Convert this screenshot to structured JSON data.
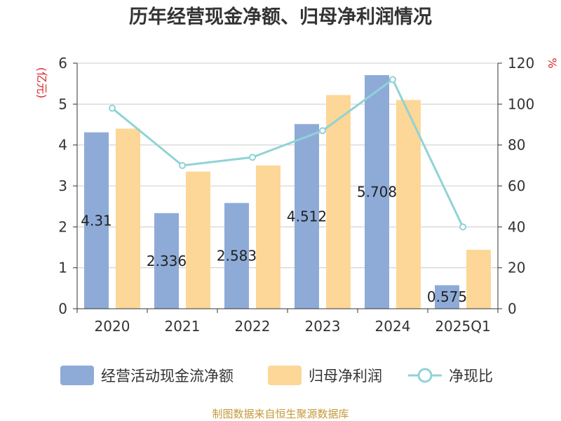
{
  "chart_data": {
    "type": "bar",
    "title": "历年经营现金净额、归母净利润情况",
    "categories": [
      "2020",
      "2021",
      "2022",
      "2023",
      "2024",
      "2025Q1"
    ],
    "left_axis": {
      "unit_label": "(亿元)",
      "ylim": [
        0,
        6
      ],
      "ticks": [
        "0",
        "1",
        "2",
        "3",
        "4",
        "5",
        "6"
      ]
    },
    "right_axis": {
      "unit_label": "%",
      "ylim": [
        0,
        120
      ],
      "ticks": [
        "0",
        "20",
        "40",
        "60",
        "80",
        "100",
        "120"
      ]
    },
    "series": [
      {
        "name": "经营活动现金流净额",
        "type": "bar",
        "axis": "left",
        "color": "#8eabd8",
        "values": [
          4.31,
          2.336,
          2.583,
          4.512,
          5.708,
          0.575
        ],
        "labels": [
          "4.31",
          "2.336",
          "2.583",
          "4.512",
          "5.708",
          "0.575"
        ]
      },
      {
        "name": "归母净利润",
        "type": "bar",
        "axis": "left",
        "color": "#fdd797",
        "values": [
          4.4,
          3.35,
          3.5,
          5.22,
          5.1,
          1.44
        ]
      },
      {
        "name": "净现比",
        "type": "line",
        "axis": "right",
        "color": "#8fd3d6",
        "values": [
          98,
          70,
          74,
          87,
          112,
          40
        ]
      }
    ],
    "grid": true,
    "legend_position": "bottom",
    "source": "制图数据来自恒生聚源数据库"
  }
}
